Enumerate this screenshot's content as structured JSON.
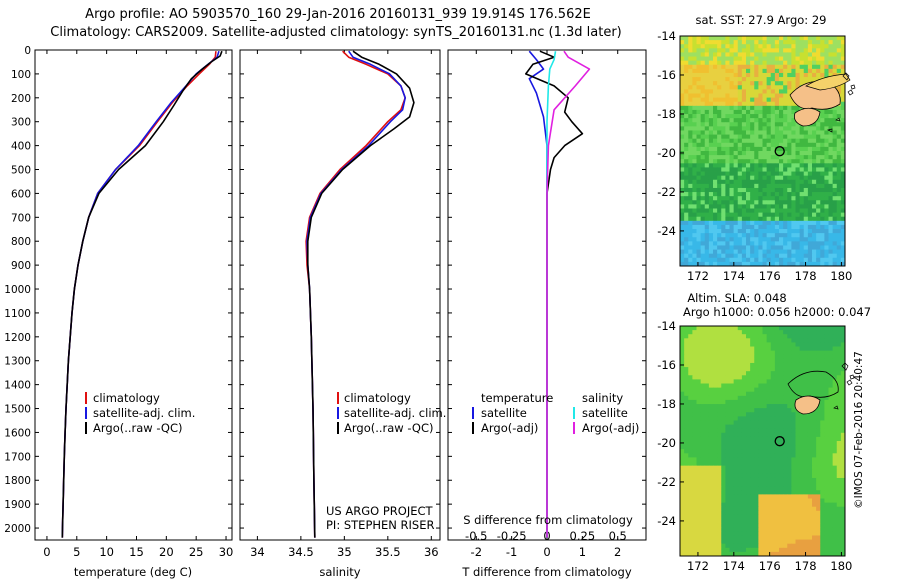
{
  "header": {
    "line1": "Argo profile: AO 5903570_160 29-Jan-2016 20160131_939 19.914S 176.562E",
    "line2": "Climatology: CARS2009. Satellite-adjusted climatology: synTS_20160131.nc (1.3d later)"
  },
  "colors": {
    "red": "#e01010",
    "blue": "#1818e0",
    "black": "#000000",
    "cyan": "#20e8e8",
    "magenta": "#e020e0"
  },
  "chart_data": [
    {
      "id": "temperature",
      "type": "line",
      "xlabel": "temperature (deg C)",
      "xlim": [
        -2,
        31
      ],
      "ylim": [
        0,
        2050
      ],
      "xticks": [
        "0",
        "5",
        "10",
        "15",
        "20",
        "25",
        "30"
      ],
      "yticks": [
        "0",
        "100",
        "200",
        "300",
        "400",
        "500",
        "600",
        "700",
        "800",
        "900",
        "1000",
        "1100",
        "1200",
        "1300",
        "1400",
        "1500",
        "1600",
        "1700",
        "1800",
        "1900",
        "2000"
      ],
      "legend": [
        "climatology",
        "satellite-adj. clim.",
        "Argo(..raw -QC)"
      ],
      "series": [
        {
          "name": "climatology",
          "color": "red",
          "points": [
            [
              28.3,
              5
            ],
            [
              28.2,
              30
            ],
            [
              27.2,
              60
            ],
            [
              25.5,
              100
            ],
            [
              23.5,
              150
            ],
            [
              21,
              220
            ],
            [
              18.5,
              300
            ],
            [
              15.5,
              400
            ],
            [
              11.5,
              500
            ],
            [
              8.5,
              600
            ],
            [
              7,
              700
            ],
            [
              6,
              800
            ],
            [
              5.2,
              900
            ],
            [
              4.6,
              1000
            ],
            [
              4.2,
              1100
            ],
            [
              3.9,
              1200
            ],
            [
              3.6,
              1300
            ],
            [
              3.4,
              1400
            ],
            [
              3.2,
              1500
            ],
            [
              3.05,
              1600
            ],
            [
              2.9,
              1700
            ],
            [
              2.8,
              1800
            ],
            [
              2.7,
              1900
            ],
            [
              2.6,
              2000
            ],
            [
              2.58,
              2040
            ]
          ]
        },
        {
          "name": "satellite-adj. clim.",
          "color": "blue",
          "points": [
            [
              28.8,
              5
            ],
            [
              28.5,
              30
            ],
            [
              27,
              60
            ],
            [
              25,
              100
            ],
            [
              23.3,
              150
            ],
            [
              20.8,
              220
            ],
            [
              18.3,
              300
            ],
            [
              15.3,
              400
            ],
            [
              11.5,
              500
            ],
            [
              8.5,
              600
            ],
            [
              7,
              700
            ],
            [
              6,
              800
            ],
            [
              5.2,
              900
            ],
            [
              4.6,
              1000
            ],
            [
              4.2,
              1100
            ],
            [
              3.9,
              1200
            ],
            [
              3.6,
              1300
            ],
            [
              3.4,
              1400
            ],
            [
              3.2,
              1500
            ],
            [
              3.05,
              1600
            ],
            [
              2.9,
              1700
            ],
            [
              2.8,
              1800
            ],
            [
              2.7,
              1900
            ],
            [
              2.6,
              2000
            ],
            [
              2.58,
              2040
            ]
          ]
        },
        {
          "name": "Argo(..raw -QC)",
          "color": "black",
          "points": [
            [
              29.3,
              5
            ],
            [
              29,
              25
            ],
            [
              27.5,
              50
            ],
            [
              26,
              80
            ],
            [
              24.2,
              120
            ],
            [
              22.8,
              170
            ],
            [
              21.3,
              230
            ],
            [
              19.5,
              300
            ],
            [
              16.5,
              400
            ],
            [
              12,
              500
            ],
            [
              8.7,
              600
            ],
            [
              7,
              700
            ],
            [
              6,
              800
            ],
            [
              5.2,
              900
            ],
            [
              4.6,
              1000
            ],
            [
              4.2,
              1100
            ],
            [
              3.9,
              1200
            ],
            [
              3.6,
              1300
            ],
            [
              3.4,
              1400
            ],
            [
              3.2,
              1500
            ],
            [
              3.05,
              1600
            ],
            [
              2.9,
              1700
            ],
            [
              2.8,
              1800
            ],
            [
              2.7,
              1900
            ],
            [
              2.6,
              2000
            ],
            [
              2.58,
              2040
            ]
          ]
        }
      ]
    },
    {
      "id": "salinity",
      "type": "line",
      "xlabel": "salinity",
      "xlim": [
        33.8,
        36.1
      ],
      "ylim": [
        0,
        2050
      ],
      "xticks": [
        "34",
        "34.5",
        "35",
        "35.5",
        "36"
      ],
      "legend": [
        "climatology",
        "satellite-adj. clim.",
        "Argo(..raw -QC)"
      ],
      "annotation": [
        "US ARGO PROJECT",
        "PI: STEPHEN RISER"
      ],
      "series": [
        {
          "name": "climatology",
          "color": "red",
          "points": [
            [
              34.98,
              5
            ],
            [
              35.05,
              30
            ],
            [
              35.25,
              60
            ],
            [
              35.5,
              100
            ],
            [
              35.65,
              150
            ],
            [
              35.7,
              200
            ],
            [
              35.65,
              250
            ],
            [
              35.5,
              300
            ],
            [
              35.25,
              400
            ],
            [
              34.95,
              500
            ],
            [
              34.72,
              600
            ],
            [
              34.6,
              700
            ],
            [
              34.56,
              800
            ],
            [
              34.57,
              900
            ],
            [
              34.6,
              1000
            ],
            [
              34.62,
              1200
            ],
            [
              34.64,
              1500
            ],
            [
              34.65,
              1800
            ],
            [
              34.66,
              2040
            ]
          ]
        },
        {
          "name": "satellite-adj. clim.",
          "color": "blue",
          "points": [
            [
              35.05,
              5
            ],
            [
              35.1,
              30
            ],
            [
              35.3,
              60
            ],
            [
              35.52,
              100
            ],
            [
              35.65,
              150
            ],
            [
              35.7,
              200
            ],
            [
              35.67,
              250
            ],
            [
              35.53,
              300
            ],
            [
              35.28,
              400
            ],
            [
              34.97,
              500
            ],
            [
              34.73,
              600
            ],
            [
              34.61,
              700
            ],
            [
              34.57,
              800
            ],
            [
              34.58,
              900
            ],
            [
              34.6,
              1000
            ],
            [
              34.62,
              1200
            ],
            [
              34.64,
              1500
            ],
            [
              34.65,
              1800
            ],
            [
              34.66,
              2040
            ]
          ]
        },
        {
          "name": "Argo(..raw -QC)",
          "color": "black",
          "points": [
            [
              35.1,
              5
            ],
            [
              35.2,
              30
            ],
            [
              35.4,
              60
            ],
            [
              35.6,
              100
            ],
            [
              35.75,
              160
            ],
            [
              35.8,
              220
            ],
            [
              35.75,
              280
            ],
            [
              35.57,
              330
            ],
            [
              35.3,
              400
            ],
            [
              34.98,
              500
            ],
            [
              34.74,
              600
            ],
            [
              34.62,
              700
            ],
            [
              34.58,
              800
            ],
            [
              34.58,
              900
            ],
            [
              34.6,
              1000
            ],
            [
              34.62,
              1200
            ],
            [
              34.64,
              1500
            ],
            [
              34.65,
              1800
            ],
            [
              34.66,
              2040
            ]
          ]
        }
      ]
    },
    {
      "id": "difference",
      "type": "line",
      "xlabel": "T difference from climatology",
      "xlabel_top": "S difference from climatology",
      "xlim": [
        -2.8,
        2.8
      ],
      "ylim": [
        0,
        2050
      ],
      "xticks": [
        "-2",
        "-1",
        "0",
        "1",
        "2"
      ],
      "sticks": [
        "-0.5",
        "-0.25",
        "0",
        "0.25",
        "0.5"
      ],
      "legend_titles": [
        "temperature",
        "salinity"
      ],
      "legend": [
        "satellite",
        "Argo(-adj)",
        "satellite",
        "Argo(-adj)"
      ],
      "series": [
        {
          "name": "T satellite",
          "color": "blue",
          "points": [
            [
              -0.5,
              5
            ],
            [
              -0.3,
              40
            ],
            [
              -0.1,
              80
            ],
            [
              -0.5,
              120
            ],
            [
              -0.3,
              180
            ],
            [
              -0.1,
              280
            ],
            [
              0,
              400
            ],
            [
              0,
              600
            ],
            [
              0,
              2040
            ]
          ]
        },
        {
          "name": "T Argo(-adj)",
          "color": "black",
          "points": [
            [
              -0.2,
              5
            ],
            [
              0.2,
              30
            ],
            [
              -0.4,
              60
            ],
            [
              -0.6,
              100
            ],
            [
              0.2,
              150
            ],
            [
              0.6,
              200
            ],
            [
              0.5,
              260
            ],
            [
              0.7,
              300
            ],
            [
              1,
              350
            ],
            [
              0.5,
              400
            ],
            [
              0.2,
              450
            ],
            [
              0.1,
              500
            ],
            [
              0,
              600
            ],
            [
              0,
              2040
            ]
          ]
        },
        {
          "name": "S satellite",
          "color": "cyan",
          "points": [
            [
              0.06,
              5
            ],
            [
              0.05,
              40
            ],
            [
              0.02,
              80
            ],
            [
              0.01,
              150
            ],
            [
              0,
              300
            ],
            [
              0,
              2040
            ]
          ]
        },
        {
          "name": "S Argo(-adj)",
          "color": "magenta",
          "points": [
            [
              0.12,
              5
            ],
            [
              0.15,
              30
            ],
            [
              0.3,
              80
            ],
            [
              0.2,
              150
            ],
            [
              0.05,
              250
            ],
            [
              0.01,
              400
            ],
            [
              0,
              600
            ],
            [
              0,
              2040
            ]
          ]
        }
      ]
    }
  ],
  "maps": [
    {
      "id": "sst-map",
      "title": "sat. SST: 27.9 Argo: 29",
      "title2": "",
      "xticks": [
        "172",
        "174",
        "176",
        "178",
        "180"
      ],
      "yticks": [
        "-14",
        "-16",
        "-18",
        "-20",
        "-22",
        "-24"
      ],
      "lon": [
        171,
        180.2
      ],
      "lat": [
        -25.8,
        -14
      ],
      "marker": [
        176.56,
        -19.91
      ]
    },
    {
      "id": "sla-map",
      "title": "Altim. SLA: 0.048",
      "title2": "Argo h1000: 0.056 h2000: 0.047",
      "xticks": [
        "172",
        "174",
        "176",
        "178",
        "180"
      ],
      "yticks": [
        "-14",
        "-16",
        "-18",
        "-20",
        "-22",
        "-24"
      ],
      "lon": [
        171,
        180.2
      ],
      "lat": [
        -25.8,
        -14
      ],
      "marker": [
        176.56,
        -19.91
      ]
    }
  ],
  "credit": "©IMOS 07-Feb-2016 20:40:47"
}
